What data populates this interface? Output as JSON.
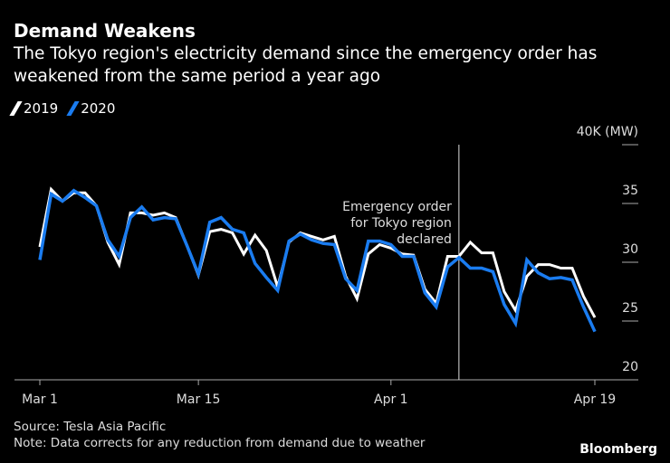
{
  "chart_data": {
    "type": "line",
    "title": "Demand Weakens",
    "subtitle": "The Tokyo region's electricity demand since the emergency order has weakened from the same period a year ago",
    "ylabel": "40K (MW)",
    "ylim": [
      20,
      40
    ],
    "yticks": [
      20,
      25,
      30,
      35,
      40
    ],
    "ytick_labels": [
      "20",
      "25",
      "30",
      "35",
      "40K (MW)"
    ],
    "x_start": "Mar 1",
    "x_days": 50,
    "xticks": [
      {
        "day": 0,
        "label": "Mar 1"
      },
      {
        "day": 14,
        "label": "Mar 15"
      },
      {
        "day": 31,
        "label": "Apr 1"
      },
      {
        "day": 49,
        "label": "Apr 19"
      }
    ],
    "legend_placement": "top-left",
    "series": [
      {
        "name": "2019",
        "color": "#ffffff",
        "values": [
          31.3,
          36.2,
          35.2,
          35.9,
          35.9,
          34.8,
          31.7,
          29.8,
          34.2,
          34.2,
          34.0,
          34.2,
          33.8,
          31.4,
          28.9,
          32.6,
          32.8,
          32.5,
          30.7,
          32.3,
          31.0,
          27.9,
          31.7,
          32.5,
          32.2,
          31.9,
          32.2,
          28.8,
          26.9,
          30.7,
          31.5,
          31.2,
          30.7,
          30.6,
          27.7,
          26.5,
          30.5,
          30.5,
          31.7,
          30.8,
          30.8,
          27.5,
          25.9,
          28.8,
          29.8,
          29.8,
          29.5,
          29.5,
          27.1,
          25.3
        ]
      },
      {
        "name": "2020",
        "color": "#1a7cf0",
        "values": [
          30.2,
          35.8,
          35.2,
          36.1,
          35.5,
          34.8,
          31.9,
          30.5,
          33.8,
          34.7,
          33.6,
          33.8,
          33.7,
          31.4,
          29.0,
          33.4,
          33.8,
          32.8,
          32.5,
          29.9,
          28.7,
          27.6,
          31.8,
          32.4,
          31.9,
          31.6,
          31.5,
          28.6,
          27.6,
          31.8,
          31.8,
          31.5,
          30.5,
          30.5,
          27.4,
          26.2,
          29.6,
          30.4,
          29.5,
          29.5,
          29.2,
          26.4,
          24.8,
          30.2,
          29.1,
          28.6,
          28.7,
          28.5,
          26.2,
          24.1
        ]
      }
    ],
    "annotation": {
      "day": 37,
      "lines": [
        "Emergency order",
        "for Tokyo region",
        "declared"
      ]
    }
  },
  "footer": {
    "source": "Source: Tesla Asia Pacific",
    "note": "Note: Data corrects for any reduction from demand due to weather",
    "brand": "Bloomberg"
  }
}
